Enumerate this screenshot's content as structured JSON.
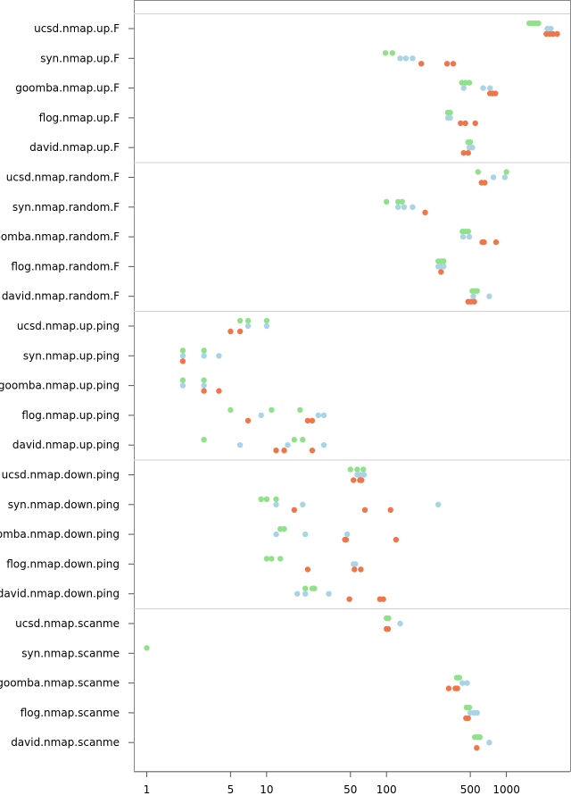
{
  "chart_data": {
    "type": "scatter",
    "x_scale": "log",
    "xlim": [
      0.78,
      3400
    ],
    "x_ticks": [
      1,
      5,
      10,
      50,
      100,
      500,
      1000
    ],
    "x_tick_labels": [
      "1",
      "5",
      "10",
      "50",
      "100",
      "500",
      "1000"
    ],
    "colors": {
      "green": "#90e28a",
      "blue": "#a8d4e6",
      "orange": "#f0764a"
    },
    "groups": [
      {
        "rows": [
          {
            "label": "ucsd.nmap.up.F",
            "green": [
              1550,
              1650,
              1750,
              1850
            ],
            "blue": [
              2200,
              2350
            ],
            "orange": [
              2150,
              2300,
              2450,
              2650
            ]
          },
          {
            "label": "syn.nmap.up.F",
            "green": [
              98,
              112
            ],
            "blue": [
              130,
              145,
              165
            ],
            "orange": [
              195,
              320,
              360
            ]
          },
          {
            "label": "goomba.nmap.up.F",
            "green": [
              425,
              455,
              490
            ],
            "blue": [
              440,
              640,
              730
            ],
            "orange": [
              730,
              770,
              810
            ]
          },
          {
            "label": "flog.nmap.up.F",
            "green": [
              325,
              340
            ],
            "blue": [
              325,
              340
            ],
            "orange": [
              415,
              455,
              550
            ]
          },
          {
            "label": "david.nmap.up.F",
            "green": [
              480,
              500
            ],
            "blue": [
              490,
              520
            ],
            "orange": [
              440,
              480
            ]
          }
        ]
      },
      {
        "rows": [
          {
            "label": "ucsd.nmap.random.F",
            "green": [
              580,
              1000
            ],
            "blue": [
              780,
              970
            ],
            "orange": [
              620,
              660
            ]
          },
          {
            "label": "syn.nmap.random.F",
            "green": [
              100,
              125,
              135
            ],
            "blue": [
              125,
              140,
              165
            ],
            "orange": [
              210
            ]
          },
          {
            "label": "goomba.nmap.random.F",
            "green": [
              430,
              455,
              480
            ],
            "blue": [
              435,
              490
            ],
            "orange": [
              630,
              650,
              820
            ]
          },
          {
            "label": "flog.nmap.random.F",
            "green": [
              270,
              285,
              300
            ],
            "blue": [
              270,
              285,
              300
            ],
            "orange": [
              285
            ]
          },
          {
            "label": "david.nmap.random.F",
            "green": [
              520,
              545,
              570
            ],
            "blue": [
              530,
              720
            ],
            "orange": [
              480,
              505,
              540
            ]
          }
        ]
      },
      {
        "rows": [
          {
            "label": "ucsd.nmap.up.ping",
            "green": [
              6,
              7,
              10
            ],
            "blue": [
              7,
              10
            ],
            "orange": [
              5,
              6
            ]
          },
          {
            "label": "syn.nmap.up.ping",
            "green": [
              2,
              3
            ],
            "blue": [
              2,
              3,
              4
            ],
            "orange": [
              2
            ]
          },
          {
            "label": "goomba.nmap.up.ping",
            "green": [
              2,
              3
            ],
            "blue": [
              2,
              3
            ],
            "orange": [
              3,
              4
            ]
          },
          {
            "label": "flog.nmap.up.ping",
            "green": [
              5,
              11,
              19
            ],
            "blue": [
              9,
              27,
              30
            ],
            "orange": [
              7,
              22,
              24
            ]
          },
          {
            "label": "david.nmap.up.ping",
            "green": [
              3,
              17,
              20
            ],
            "blue": [
              6,
              15,
              30
            ],
            "orange": [
              12,
              14,
              24
            ]
          }
        ]
      },
      {
        "rows": [
          {
            "label": "ucsd.nmap.down.ping",
            "green": [
              50,
              57,
              64
            ],
            "blue": [
              57,
              60,
              65
            ],
            "orange": [
              53,
              60,
              62
            ]
          },
          {
            "label": "syn.nmap.down.ping",
            "green": [
              9,
              10,
              12
            ],
            "blue": [
              12,
              20,
              270
            ],
            "orange": [
              17,
              66,
              108
            ]
          },
          {
            "label": "goomba.nmap.down.ping",
            "green": [
              13,
              14
            ],
            "blue": [
              12,
              21,
              47
            ],
            "orange": [
              45,
              46,
              120
            ]
          },
          {
            "label": "flog.nmap.down.ping",
            "green": [
              10,
              11,
              13
            ],
            "blue": [
              53,
              55
            ],
            "orange": [
              22,
              54,
              61
            ]
          },
          {
            "label": "david.nmap.down.ping",
            "green": [
              21,
              24,
              25
            ],
            "blue": [
              18,
              21,
              33
            ],
            "orange": [
              49,
              88,
              94
            ]
          }
        ]
      },
      {
        "rows": [
          {
            "label": "ucsd.nmap.scanme",
            "green": [
              100,
              104
            ],
            "blue": [
              130
            ],
            "orange": [
              100,
              103
            ]
          },
          {
            "label": "syn.nmap.scanme",
            "green": [
              1
            ],
            "blue": [],
            "orange": []
          },
          {
            "label": "goomba.nmap.scanme",
            "green": [
              385,
              405
            ],
            "blue": [
              430,
              470
            ],
            "orange": [
              330,
              375,
              390
            ]
          },
          {
            "label": "flog.nmap.scanme",
            "green": [
              465,
              490
            ],
            "blue": [
              500,
              540,
              570
            ],
            "orange": [
              460,
              480
            ]
          },
          {
            "label": "david.nmap.scanme",
            "green": [
              545,
              575,
              600
            ],
            "blue": [
              720
            ],
            "orange": [
              565
            ]
          }
        ]
      }
    ]
  }
}
